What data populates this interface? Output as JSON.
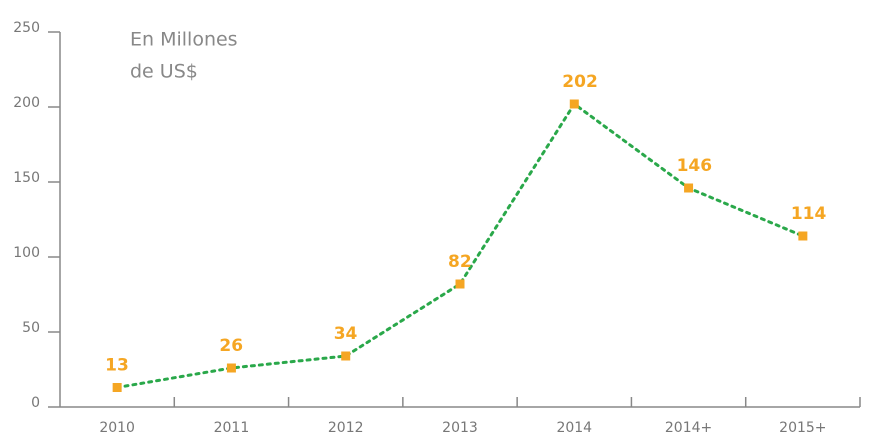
{
  "chart_data": {
    "type": "line",
    "annotation": [
      "En Millones",
      "de US$"
    ],
    "categories": [
      "2010",
      "2011",
      "2012",
      "2013",
      "2014",
      "2014+",
      "2015+"
    ],
    "series": [
      {
        "color": "#2aa84a",
        "marker_color": "#f5a623",
        "values": [
          13,
          26,
          34,
          82,
          202,
          146,
          114
        ]
      }
    ],
    "ylim": [
      0,
      250
    ],
    "yticks": [
      0,
      50,
      100,
      150,
      200,
      250
    ]
  }
}
